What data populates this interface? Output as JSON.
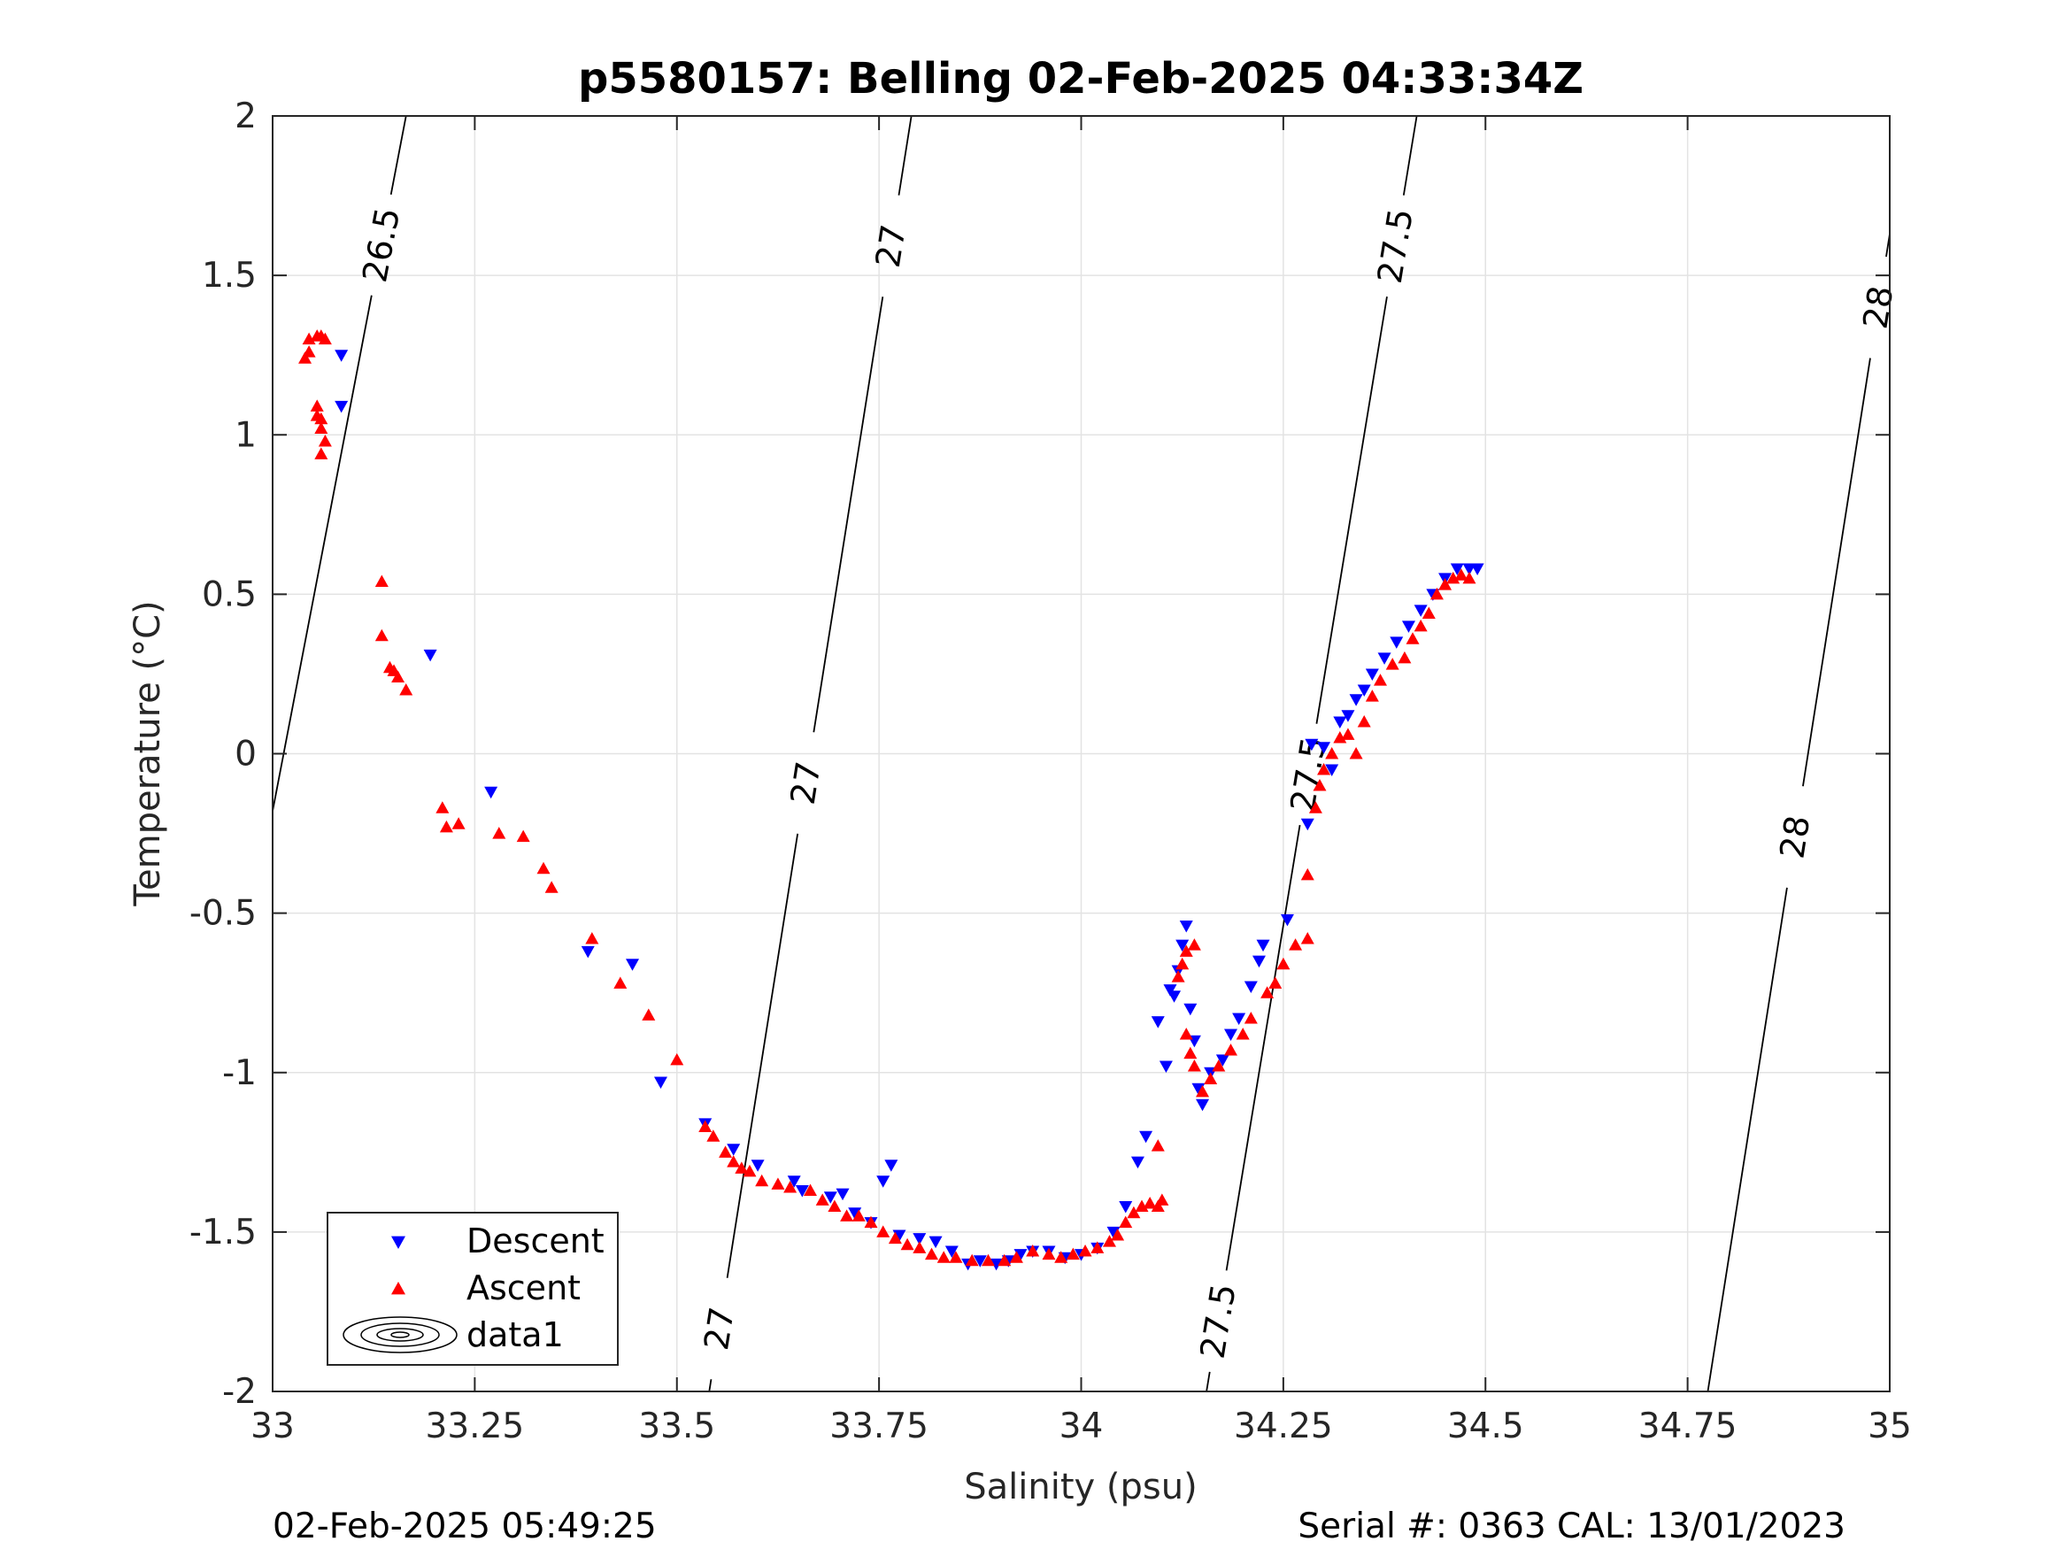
{
  "footer": {
    "timestamp": "02-Feb-2025 05:49:25",
    "serial": "Serial #: 0363  CAL: 13/01/2023"
  },
  "chart_data": {
    "type": "scatter",
    "title": "p5580157: Belling 02-Feb-2025 04:33:34Z",
    "xlabel": "Salinity (psu)",
    "ylabel": "Temperature (°C)",
    "xlim": [
      33,
      35
    ],
    "ylim": [
      -2,
      2
    ],
    "xticks": [
      33,
      33.25,
      33.5,
      33.75,
      34,
      34.25,
      34.5,
      34.75,
      35
    ],
    "xtick_labels": [
      "33",
      "33.25",
      "33.5",
      "33.75",
      "34",
      "34.25",
      "34.5",
      "34.75",
      "35"
    ],
    "yticks": [
      2,
      1.5,
      1,
      0.5,
      0,
      -0.5,
      -1,
      -1.5,
      -2
    ],
    "ytick_labels": [
      "2",
      "1.5",
      "1",
      "0.5",
      "0",
      "-0.5",
      "-1",
      "-1.5",
      "-2"
    ],
    "grid": true,
    "legend": {
      "position": "bottom-left",
      "entries": [
        "Descent",
        "Ascent",
        "data1"
      ]
    },
    "colors": {
      "descent": "#0000ff",
      "ascent": "#ff0000",
      "contour": "#000000"
    },
    "contours": [
      {
        "level": "26.5",
        "points": [
          [
            33.0,
            -0.18
          ],
          [
            33.165,
            2.0
          ]
        ],
        "labels": [
          [
            33.125,
            1.6
          ]
        ]
      },
      {
        "level": "27",
        "points": [
          [
            33.54,
            -2.0
          ],
          [
            33.79,
            2.0
          ]
        ],
        "labels": [
          [
            33.545,
            -1.8
          ],
          [
            33.63,
            -0.08
          ],
          [
            33.745,
            1.6
          ]
        ]
      },
      {
        "level": "27.5",
        "points": [
          [
            34.155,
            -2.0
          ],
          [
            34.415,
            2.0
          ]
        ],
        "labels": [
          [
            34.17,
            -1.78
          ],
          [
            34.245,
            -0.05
          ],
          [
            34.37,
            1.6
          ]
        ]
      },
      {
        "level": "28",
        "points": [
          [
            34.775,
            -2.0
          ],
          [
            35.0,
            1.63
          ]
        ],
        "labels": [
          [
            34.855,
            -0.25
          ],
          [
            34.985,
            1.4
          ]
        ]
      }
    ],
    "series": [
      {
        "name": "Descent",
        "marker": "triangle-down",
        "points": [
          [
            33.085,
            1.25
          ],
          [
            33.085,
            1.09
          ],
          [
            33.195,
            0.31
          ],
          [
            33.27,
            -0.12
          ],
          [
            33.39,
            -0.62
          ],
          [
            33.445,
            -0.66
          ],
          [
            33.48,
            -1.03
          ],
          [
            33.535,
            -1.16
          ],
          [
            33.57,
            -1.24
          ],
          [
            33.6,
            -1.29
          ],
          [
            33.645,
            -1.34
          ],
          [
            33.655,
            -1.37
          ],
          [
            33.69,
            -1.39
          ],
          [
            33.705,
            -1.38
          ],
          [
            33.72,
            -1.44
          ],
          [
            33.755,
            -1.34
          ],
          [
            33.765,
            -1.29
          ],
          [
            33.74,
            -1.47
          ],
          [
            33.775,
            -1.51
          ],
          [
            33.8,
            -1.52
          ],
          [
            33.82,
            -1.53
          ],
          [
            33.84,
            -1.56
          ],
          [
            33.86,
            -1.6
          ],
          [
            33.875,
            -1.59
          ],
          [
            33.895,
            -1.6
          ],
          [
            33.91,
            -1.59
          ],
          [
            33.925,
            -1.57
          ],
          [
            33.94,
            -1.56
          ],
          [
            33.96,
            -1.56
          ],
          [
            33.98,
            -1.58
          ],
          [
            34.0,
            -1.57
          ],
          [
            34.02,
            -1.55
          ],
          [
            34.04,
            -1.5
          ],
          [
            34.055,
            -1.42
          ],
          [
            34.07,
            -1.28
          ],
          [
            34.08,
            -1.2
          ],
          [
            34.095,
            -0.84
          ],
          [
            34.105,
            -0.98
          ],
          [
            34.11,
            -0.74
          ],
          [
            34.115,
            -0.76
          ],
          [
            34.12,
            -0.68
          ],
          [
            34.125,
            -0.6
          ],
          [
            34.13,
            -0.54
          ],
          [
            34.135,
            -0.8
          ],
          [
            34.14,
            -0.9
          ],
          [
            34.145,
            -1.05
          ],
          [
            34.15,
            -1.1
          ],
          [
            34.16,
            -1.0
          ],
          [
            34.175,
            -0.96
          ],
          [
            34.185,
            -0.88
          ],
          [
            34.195,
            -0.83
          ],
          [
            34.21,
            -0.73
          ],
          [
            34.22,
            -0.65
          ],
          [
            34.225,
            -0.6
          ],
          [
            34.255,
            -0.52
          ],
          [
            34.28,
            -0.22
          ],
          [
            34.285,
            0.03
          ],
          [
            34.3,
            0.02
          ],
          [
            34.31,
            -0.05
          ],
          [
            34.32,
            0.1
          ],
          [
            34.33,
            0.12
          ],
          [
            34.34,
            0.17
          ],
          [
            34.35,
            0.2
          ],
          [
            34.36,
            0.25
          ],
          [
            34.375,
            0.3
          ],
          [
            34.39,
            0.35
          ],
          [
            34.405,
            0.4
          ],
          [
            34.42,
            0.45
          ],
          [
            34.435,
            0.5
          ],
          [
            34.45,
            0.55
          ],
          [
            34.465,
            0.58
          ],
          [
            34.48,
            0.58
          ],
          [
            34.49,
            0.58
          ]
        ]
      },
      {
        "name": "Ascent",
        "marker": "triangle-up",
        "points": [
          [
            33.04,
            1.24
          ],
          [
            33.045,
            1.26
          ],
          [
            33.045,
            1.3
          ],
          [
            33.055,
            1.31
          ],
          [
            33.06,
            1.31
          ],
          [
            33.065,
            1.3
          ],
          [
            33.055,
            1.09
          ],
          [
            33.055,
            1.06
          ],
          [
            33.06,
            1.05
          ],
          [
            33.06,
            1.02
          ],
          [
            33.065,
            0.98
          ],
          [
            33.06,
            0.94
          ],
          [
            33.135,
            0.54
          ],
          [
            33.135,
            0.37
          ],
          [
            33.145,
            0.27
          ],
          [
            33.15,
            0.26
          ],
          [
            33.155,
            0.24
          ],
          [
            33.165,
            0.2
          ],
          [
            33.21,
            -0.17
          ],
          [
            33.215,
            -0.23
          ],
          [
            33.23,
            -0.22
          ],
          [
            33.28,
            -0.25
          ],
          [
            33.31,
            -0.26
          ],
          [
            33.335,
            -0.36
          ],
          [
            33.345,
            -0.42
          ],
          [
            33.395,
            -0.58
          ],
          [
            33.43,
            -0.72
          ],
          [
            33.465,
            -0.82
          ],
          [
            33.5,
            -0.96
          ],
          [
            33.535,
            -1.17
          ],
          [
            33.545,
            -1.2
          ],
          [
            33.56,
            -1.25
          ],
          [
            33.57,
            -1.28
          ],
          [
            33.58,
            -1.3
          ],
          [
            33.59,
            -1.31
          ],
          [
            33.605,
            -1.34
          ],
          [
            33.625,
            -1.35
          ],
          [
            33.64,
            -1.36
          ],
          [
            33.665,
            -1.37
          ],
          [
            33.68,
            -1.4
          ],
          [
            33.695,
            -1.42
          ],
          [
            33.71,
            -1.45
          ],
          [
            33.725,
            -1.45
          ],
          [
            33.74,
            -1.47
          ],
          [
            33.755,
            -1.5
          ],
          [
            33.77,
            -1.52
          ],
          [
            33.785,
            -1.54
          ],
          [
            33.8,
            -1.55
          ],
          [
            33.815,
            -1.57
          ],
          [
            33.83,
            -1.58
          ],
          [
            33.845,
            -1.58
          ],
          [
            33.865,
            -1.59
          ],
          [
            33.885,
            -1.59
          ],
          [
            33.905,
            -1.59
          ],
          [
            33.92,
            -1.58
          ],
          [
            33.94,
            -1.56
          ],
          [
            33.96,
            -1.57
          ],
          [
            33.975,
            -1.58
          ],
          [
            33.99,
            -1.57
          ],
          [
            34.005,
            -1.56
          ],
          [
            34.02,
            -1.55
          ],
          [
            34.035,
            -1.53
          ],
          [
            34.045,
            -1.51
          ],
          [
            34.055,
            -1.47
          ],
          [
            34.065,
            -1.44
          ],
          [
            34.075,
            -1.42
          ],
          [
            34.085,
            -1.41
          ],
          [
            34.095,
            -1.42
          ],
          [
            34.1,
            -1.4
          ],
          [
            34.095,
            -1.23
          ],
          [
            34.12,
            -0.7
          ],
          [
            34.125,
            -0.66
          ],
          [
            34.13,
            -0.62
          ],
          [
            34.14,
            -0.6
          ],
          [
            34.13,
            -0.88
          ],
          [
            34.135,
            -0.94
          ],
          [
            34.14,
            -0.98
          ],
          [
            34.15,
            -1.06
          ],
          [
            34.16,
            -1.02
          ],
          [
            34.17,
            -0.98
          ],
          [
            34.185,
            -0.93
          ],
          [
            34.2,
            -0.88
          ],
          [
            34.21,
            -0.83
          ],
          [
            34.23,
            -0.75
          ],
          [
            34.24,
            -0.72
          ],
          [
            34.25,
            -0.66
          ],
          [
            34.265,
            -0.6
          ],
          [
            34.28,
            -0.58
          ],
          [
            34.28,
            -0.38
          ],
          [
            34.29,
            -0.17
          ],
          [
            34.295,
            -0.1
          ],
          [
            34.3,
            -0.05
          ],
          [
            34.31,
            0.0
          ],
          [
            34.32,
            0.05
          ],
          [
            34.33,
            0.06
          ],
          [
            34.34,
            0.0
          ],
          [
            34.35,
            0.1
          ],
          [
            34.36,
            0.18
          ],
          [
            34.37,
            0.23
          ],
          [
            34.385,
            0.28
          ],
          [
            34.4,
            0.3
          ],
          [
            34.41,
            0.36
          ],
          [
            34.42,
            0.4
          ],
          [
            34.43,
            0.44
          ],
          [
            34.44,
            0.5
          ],
          [
            34.45,
            0.53
          ],
          [
            34.46,
            0.55
          ],
          [
            34.47,
            0.56
          ],
          [
            34.48,
            0.55
          ]
        ]
      }
    ]
  }
}
